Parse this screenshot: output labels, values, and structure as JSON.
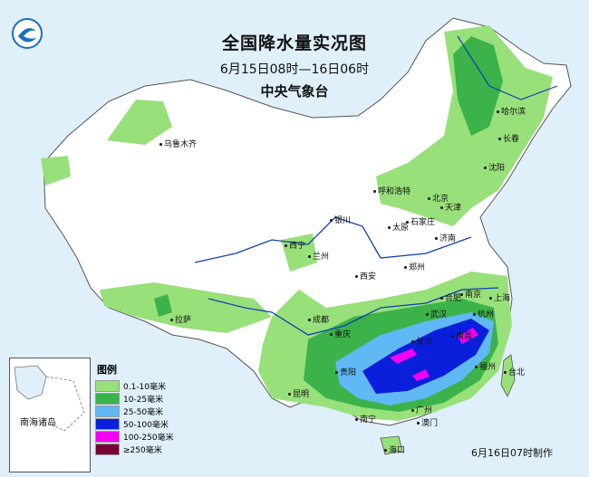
{
  "title": "全国降水量实况图",
  "period": "6月15日08时—16日06时",
  "agency": "中央气象台",
  "footer": "6月16日07时制作",
  "legend": {
    "title": "图例",
    "items": [
      {
        "label": "0.1-10毫米",
        "color": "#98e07a"
      },
      {
        "label": "10-25毫米",
        "color": "#3cb24a"
      },
      {
        "label": "25-50毫米",
        "color": "#60b8f4"
      },
      {
        "label": "50-100毫米",
        "color": "#0a1fdc"
      },
      {
        "label": "100-250毫米",
        "color": "#f200f2"
      },
      {
        "label": "≥250毫米",
        "color": "#7a0033"
      }
    ]
  },
  "inset_label": "南海诸岛",
  "cities": [
    {
      "name": "乌鲁木齐"
    },
    {
      "name": "哈尔滨"
    },
    {
      "name": "长春"
    },
    {
      "name": "沈阳"
    },
    {
      "name": "呼和浩特"
    },
    {
      "name": "北京"
    },
    {
      "name": "天津"
    },
    {
      "name": "银川"
    },
    {
      "name": "太原"
    },
    {
      "name": "石家庄"
    },
    {
      "name": "济南"
    },
    {
      "name": "西宁"
    },
    {
      "name": "兰州"
    },
    {
      "name": "郑州"
    },
    {
      "name": "西安"
    },
    {
      "name": "拉萨"
    },
    {
      "name": "成都"
    },
    {
      "name": "合肥"
    },
    {
      "name": "南京"
    },
    {
      "name": "上海"
    },
    {
      "name": "武汉"
    },
    {
      "name": "杭州"
    },
    {
      "name": "重庆"
    },
    {
      "name": "长沙"
    },
    {
      "name": "南昌"
    },
    {
      "name": "贵阳"
    },
    {
      "name": "福州"
    },
    {
      "name": "台北"
    },
    {
      "name": "昆明"
    },
    {
      "name": "南宁"
    },
    {
      "name": "广州"
    },
    {
      "name": "澳门"
    },
    {
      "name": "海口"
    }
  ]
}
